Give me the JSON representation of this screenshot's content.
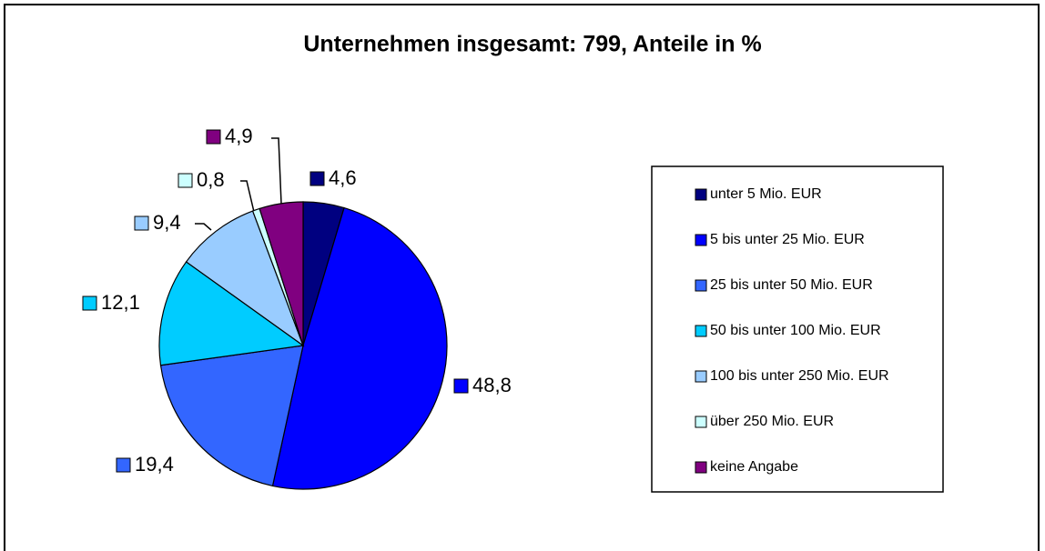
{
  "chart_data": {
    "type": "pie",
    "title": "Unternehmen insgesamt: 799, Anteile in %",
    "categories": [
      "unter 5 Mio. EUR",
      "5 bis unter 25 Mio. EUR",
      "25 bis unter 50 Mio. EUR",
      "50 bis unter 100 Mio. EUR",
      "100 bis unter 250 Mio. EUR",
      "über 250 Mio. EUR",
      "keine Angabe"
    ],
    "values": [
      4.6,
      48.8,
      19.4,
      12.1,
      9.4,
      0.8,
      4.9
    ],
    "value_labels": [
      "4,6",
      "48,8",
      "19,4",
      "12,1",
      "9,4",
      "0,8",
      "4,9"
    ],
    "colors": [
      "#000080",
      "#0000ff",
      "#3366ff",
      "#00ccff",
      "#99ccff",
      "#ccffff",
      "#800080"
    ],
    "legend": "right"
  }
}
